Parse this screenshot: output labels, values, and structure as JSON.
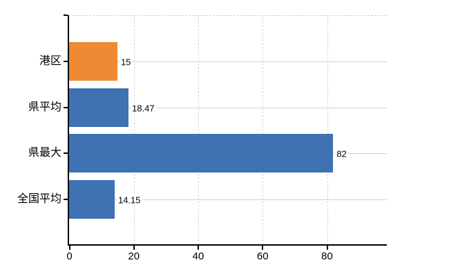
{
  "chart_data": {
    "type": "bar",
    "orientation": "horizontal",
    "title": "",
    "xlabel": "",
    "ylabel": "",
    "categories": [
      "港区",
      "県平均",
      "県最大",
      "全国平均"
    ],
    "values": [
      15,
      18.47,
      82,
      14.15
    ],
    "value_labels": [
      "15",
      "18.47",
      "82",
      "14.15"
    ],
    "bar_colors": [
      "#ED8A33",
      "#3E72B2",
      "#3E72B2",
      "#3E72B2"
    ],
    "x_ticks": [
      0,
      20,
      40,
      60,
      80
    ],
    "x_tick_labels": [
      "0",
      "20",
      "40",
      "60",
      "80"
    ],
    "xlim": [
      0,
      98.5
    ],
    "grid": true,
    "legend": false
  },
  "colors": {
    "highlight_bar": "#ED8A33",
    "default_bar": "#3E72B2",
    "axis": "#000000",
    "grid_horizontal": "#cbd6cb",
    "grid_vertical": "#d6d6d6",
    "top_border": "#d2d2d2",
    "text": "#000000",
    "background": "#ffffff"
  }
}
